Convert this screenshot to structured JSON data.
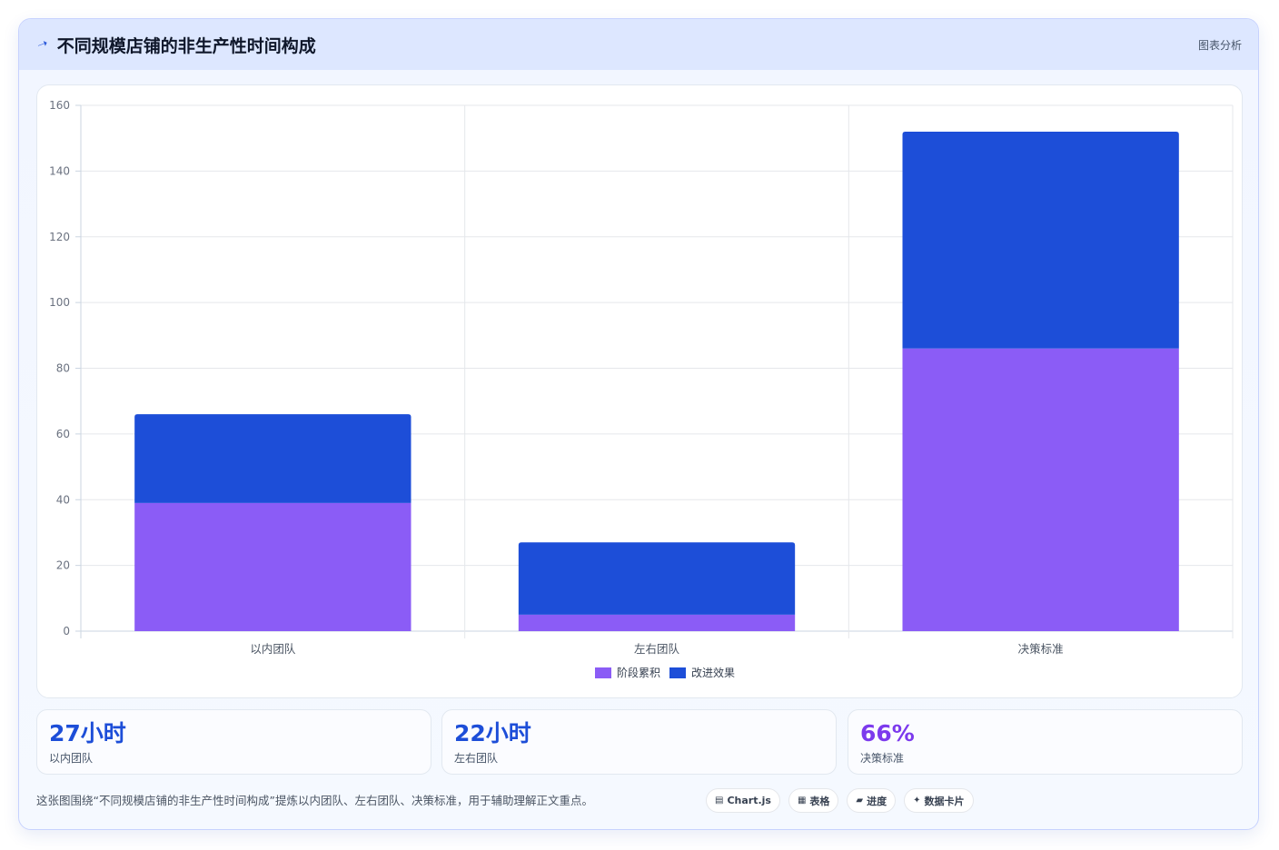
{
  "header": {
    "title": "不同规模店铺的非生产性时间构成",
    "tag": "图表分析",
    "icon": "trend-icon"
  },
  "chart_data": {
    "type": "bar",
    "stacked": true,
    "title": "",
    "categories": [
      "以内团队",
      "左右团队",
      "决策标准"
    ],
    "series": [
      {
        "name": "阶段累积",
        "color": "#8b5cf6",
        "values": [
          39,
          5,
          86
        ]
      },
      {
        "name": "改进效果",
        "color": "#1d4ed8",
        "values": [
          27,
          22,
          66
        ]
      }
    ],
    "ylim": [
      0,
      160
    ],
    "yticks": [
      0,
      20,
      40,
      60,
      80,
      100,
      120,
      140,
      160
    ],
    "grid": true,
    "legend": "bottom"
  },
  "stats": [
    {
      "value": "27小时",
      "label": "以内团队",
      "color": "#1d4ed8"
    },
    {
      "value": "22小时",
      "label": "左右团队",
      "color": "#1d4ed8"
    },
    {
      "value": "66%",
      "label": "决策标准",
      "color": "#7c3aed"
    }
  ],
  "footer": {
    "note": "这张图围绕“不同规模店铺的非生产性时间构成”提炼以内团队、左右团队、决策标准，用于辅助理解正文重点。",
    "chips": [
      {
        "icon": "▤",
        "label": "Chart.js"
      },
      {
        "icon": "▦",
        "label": "表格"
      },
      {
        "icon": "▰",
        "label": "进度"
      },
      {
        "icon": "✦",
        "label": "数据卡片"
      }
    ]
  }
}
